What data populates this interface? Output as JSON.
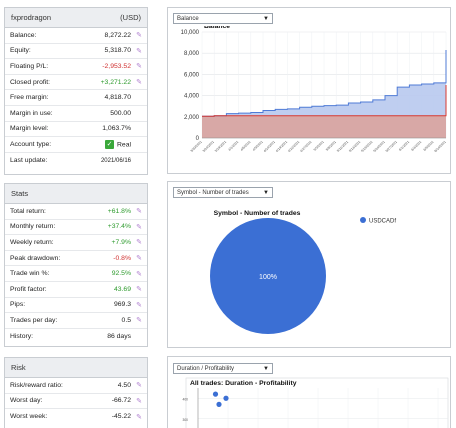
{
  "account": {
    "name": "fxprodragon",
    "currency": "(USD)",
    "rows": [
      {
        "label": "Balance:",
        "value": "8,272.22",
        "edit": true,
        "style": ""
      },
      {
        "label": "Equity:",
        "value": "5,318.70",
        "edit": true,
        "style": ""
      },
      {
        "label": "Floating P/L:",
        "value": "-2,953.52",
        "edit": true,
        "style": "neg"
      },
      {
        "label": "Closed profit:",
        "value": "+3,271.22",
        "edit": true,
        "style": "pos"
      },
      {
        "label": "Free margin:",
        "value": "4,818.70",
        "edit": false,
        "style": ""
      },
      {
        "label": "Margin in use:",
        "value": "500.00",
        "edit": false,
        "style": ""
      },
      {
        "label": "Margin level:",
        "value": "1,063.7%",
        "edit": false,
        "style": ""
      },
      {
        "label": "Account type:",
        "value": "Real",
        "edit": false,
        "style": "",
        "check": true
      },
      {
        "label": "Last update:",
        "value": "2021/06/16",
        "edit": false,
        "style": "small"
      }
    ]
  },
  "stats": {
    "title": "Stats",
    "rows": [
      {
        "label": "Total return:",
        "value": "+61.8%",
        "edit": true,
        "style": "pos"
      },
      {
        "label": "Monthly return:",
        "value": "+37.4%",
        "edit": true,
        "style": "pos"
      },
      {
        "label": "Weekly return:",
        "value": "+7.9%",
        "edit": true,
        "style": "pos"
      },
      {
        "label": "Peak drawdown:",
        "value": "-0.8%",
        "edit": true,
        "style": "neg"
      },
      {
        "label": "Trade win %:",
        "value": "92.5%",
        "edit": true,
        "style": "pos"
      },
      {
        "label": "Profit factor:",
        "value": "43.69",
        "edit": true,
        "style": "pos"
      },
      {
        "label": "Pips:",
        "value": "969.3",
        "edit": true,
        "style": ""
      },
      {
        "label": "Trades per day:",
        "value": "0.5",
        "edit": true,
        "style": ""
      },
      {
        "label": "History:",
        "value": "86 days",
        "edit": false,
        "style": ""
      }
    ]
  },
  "risk": {
    "title": "Risk",
    "rows": [
      {
        "label": "Risk/reward ratio:",
        "value": "4.50",
        "edit": true,
        "style": ""
      },
      {
        "label": "Worst day:",
        "value": "-66.72",
        "edit": true,
        "style": ""
      },
      {
        "label": "Worst week:",
        "value": "-45.22",
        "edit": true,
        "style": ""
      }
    ]
  },
  "balance_chart": {
    "dropdown": "Balance",
    "title": "Balance",
    "colors": {
      "balance": "#4f7bd6",
      "balance_fill": "#b8c9ee",
      "equity": "#d9392f",
      "equity_fill": "#d8a8a6"
    },
    "y_ticks": [
      "10,000",
      "8,000",
      "6,000",
      "4,000",
      "2,000",
      "0"
    ],
    "x_ticks": [
      "3/20/2021",
      "3/24/2021",
      "3/29/2021",
      "4/1/2021",
      "4/6/2021",
      "4/9/2021",
      "4/14/2021",
      "4/19/2021",
      "4/22/2021",
      "4/27/2021",
      "5/3/2021",
      "5/6/2021",
      "5/11/2021",
      "5/14/2021",
      "5/19/2021",
      "5/24/2021",
      "5/27/2021",
      "6/1/2021",
      "6/4/2021",
      "6/9/2021",
      "6/14/2021"
    ]
  },
  "symbol_chart": {
    "dropdown": "Symbol - Number of trades",
    "title": "Symbol - Number of trades",
    "legend": "USDCADf",
    "slice_label": "100%",
    "color": "#3b6fd4"
  },
  "duration_chart": {
    "dropdown": "Duration / Profitability",
    "title": "All trades: Duration - Profitability",
    "y_ticks": [
      "400",
      "300"
    ],
    "color": "#3b6fd4"
  },
  "chart_data": [
    {
      "type": "area",
      "title": "Balance",
      "xlabel": "",
      "ylabel": "",
      "ylim": [
        0,
        10000
      ],
      "x": [
        "3/20/2021",
        "3/24/2021",
        "3/29/2021",
        "4/1/2021",
        "4/6/2021",
        "4/9/2021",
        "4/14/2021",
        "4/19/2021",
        "4/22/2021",
        "4/27/2021",
        "5/3/2021",
        "5/6/2021",
        "5/11/2021",
        "5/14/2021",
        "5/19/2021",
        "5/24/2021",
        "5/27/2021",
        "6/1/2021",
        "6/4/2021",
        "6/9/2021",
        "6/14/2021"
      ],
      "series": [
        {
          "name": "Balance",
          "values": [
            2050,
            2100,
            2300,
            2350,
            2400,
            2600,
            2700,
            2750,
            2900,
            3000,
            3050,
            3100,
            3300,
            3400,
            3600,
            4000,
            4800,
            5000,
            5100,
            5200,
            8300
          ]
        },
        {
          "name": "Equity",
          "values": [
            2050,
            2100,
            2100,
            2100,
            2100,
            2100,
            2100,
            2100,
            2100,
            2100,
            2100,
            2100,
            2100,
            2100,
            2100,
            2100,
            2100,
            2100,
            2100,
            2100,
            5000
          ]
        }
      ],
      "grid": true
    },
    {
      "type": "pie",
      "title": "Symbol - Number of trades",
      "categories": [
        "USDCADf"
      ],
      "values": [
        100
      ]
    },
    {
      "type": "scatter",
      "title": "All trades: Duration - Profitability",
      "ylim": [
        250,
        450
      ],
      "x": [
        1,
        1.3,
        1.1
      ],
      "y": [
        420,
        400,
        370
      ]
    }
  ]
}
